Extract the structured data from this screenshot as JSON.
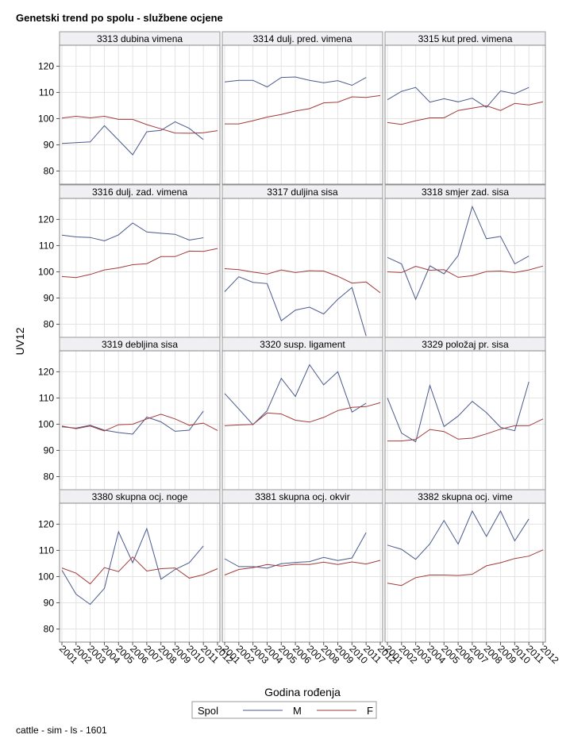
{
  "chart_data": {
    "type": "line",
    "title": "Genetski trend po spolu - službene ocjene",
    "xlabel": "Godina rođenja",
    "ylabel": "UV12",
    "x": [
      2001,
      2002,
      2003,
      2004,
      2005,
      2006,
      2007,
      2008,
      2009,
      2010,
      2011,
      2012
    ],
    "x_tick_labels": [
      "2001",
      "2002",
      "2003",
      "2004",
      "2005",
      "2006",
      "2007",
      "2008",
      "2009",
      "2010",
      "2011",
      "2012"
    ],
    "ylim": [
      75,
      128
    ],
    "y_ticks": [
      80,
      90,
      100,
      110,
      120
    ],
    "grid": true,
    "legend": {
      "title": "Spol",
      "placement": "bottom",
      "entries": [
        {
          "name": "M",
          "color": "#4a5a8c"
        },
        {
          "name": "F",
          "color": "#a33a3a"
        }
      ]
    },
    "panels": [
      {
        "title": "3313 dubina vimena",
        "series": [
          {
            "name": "M",
            "values": [
              90.5,
              90.8,
              91.1,
              97.3,
              91.8,
              86.2,
              95.0,
              95.5,
              98.8,
              96.3,
              92.0,
              null
            ]
          },
          {
            "name": "F",
            "values": [
              100.2,
              100.9,
              100.3,
              100.9,
              99.7,
              99.7,
              97.7,
              96.1,
              94.5,
              94.4,
              94.6,
              95.4
            ]
          }
        ]
      },
      {
        "title": "3314 dulj. pred. vimena",
        "series": [
          {
            "name": "M",
            "values": [
              114.0,
              114.6,
              114.6,
              112.1,
              115.7,
              115.9,
              114.6,
              113.7,
              114.5,
              112.7,
              115.7,
              null
            ]
          },
          {
            "name": "F",
            "values": [
              98.0,
              98.0,
              99.2,
              100.6,
              101.6,
              102.9,
              103.8,
              106.0,
              106.3,
              108.3,
              108.1,
              108.8
            ]
          }
        ]
      },
      {
        "title": "3315 kut pred. vimena",
        "series": [
          {
            "name": "M",
            "values": [
              107.2,
              110.4,
              111.9,
              106.3,
              107.6,
              106.4,
              107.8,
              104.3,
              110.6,
              109.5,
              111.9,
              null
            ]
          },
          {
            "name": "F",
            "values": [
              98.5,
              97.8,
              99.2,
              100.3,
              100.3,
              103.1,
              104.0,
              104.9,
              103.1,
              105.8,
              105.2,
              106.4
            ]
          }
        ]
      },
      {
        "title": "3316 dulj. zad. vimena",
        "series": [
          {
            "name": "M",
            "values": [
              114.0,
              113.3,
              113.1,
              111.8,
              114.1,
              118.6,
              115.2,
              114.7,
              114.3,
              112.1,
              113.0,
              null
            ]
          },
          {
            "name": "F",
            "values": [
              98.2,
              97.8,
              99.0,
              100.7,
              101.5,
              102.7,
              103.1,
              105.8,
              105.8,
              107.9,
              107.8,
              108.9
            ]
          }
        ]
      },
      {
        "title": "3317 duljina sisa",
        "series": [
          {
            "name": "M",
            "values": [
              92.4,
              98.1,
              96.0,
              95.5,
              81.3,
              85.4,
              86.5,
              83.9,
              89.5,
              94.0,
              75.5,
              null
            ]
          },
          {
            "name": "F",
            "values": [
              101.2,
              100.8,
              99.9,
              99.1,
              100.7,
              99.7,
              100.4,
              100.3,
              98.3,
              95.7,
              96.1,
              92.0
            ]
          }
        ]
      },
      {
        "title": "3318 smjer zad. sisa",
        "series": [
          {
            "name": "M",
            "values": [
              105.5,
              103.0,
              89.5,
              102.3,
              99.2,
              106.2,
              124.9,
              112.6,
              113.5,
              103.0,
              106.0,
              null
            ]
          },
          {
            "name": "F",
            "values": [
              100.0,
              99.7,
              102.1,
              100.6,
              100.8,
              97.9,
              98.5,
              100.1,
              100.3,
              99.7,
              100.7,
              102.2
            ]
          }
        ]
      },
      {
        "title": "3319 debljina sisa",
        "series": [
          {
            "name": "M",
            "values": [
              99.0,
              98.5,
              99.6,
              97.7,
              96.8,
              96.2,
              102.7,
              100.9,
              97.3,
              97.7,
              105.0,
              null
            ]
          },
          {
            "name": "F",
            "values": [
              99.3,
              98.3,
              99.3,
              97.4,
              99.8,
              100.0,
              102.0,
              103.8,
              102.0,
              99.6,
              100.4,
              97.6
            ]
          }
        ]
      },
      {
        "title": "3320 susp. ligament",
        "series": [
          {
            "name": "M",
            "values": [
              111.7,
              105.8,
              99.8,
              105.2,
              117.5,
              110.6,
              122.7,
              115.0,
              120.0,
              104.6,
              108.0,
              null
            ]
          },
          {
            "name": "F",
            "values": [
              99.4,
              99.7,
              99.9,
              104.3,
              103.9,
              101.5,
              100.8,
              102.6,
              105.2,
              106.4,
              106.7,
              108.2
            ]
          }
        ]
      },
      {
        "title": "3329 položaj pr. sisa",
        "series": [
          {
            "name": "M",
            "values": [
              110.0,
              96.6,
              93.3,
              114.8,
              99.1,
              103.1,
              108.7,
              104.4,
              98.8,
              97.5,
              116.2,
              null
            ]
          },
          {
            "name": "F",
            "values": [
              93.6,
              93.6,
              94.2,
              98.0,
              97.2,
              94.3,
              94.7,
              96.3,
              98.1,
              99.4,
              99.4,
              102.0
            ]
          }
        ]
      },
      {
        "title": "3380 skupna ocj. noge",
        "series": [
          {
            "name": "M",
            "values": [
              102.4,
              93.3,
              89.4,
              95.5,
              117.1,
              105.3,
              118.3,
              99.0,
              102.7,
              105.3,
              111.7,
              null
            ]
          },
          {
            "name": "F",
            "values": [
              103.3,
              101.3,
              97.2,
              103.4,
              101.9,
              107.5,
              102.1,
              103.0,
              103.3,
              99.4,
              100.7,
              103.0
            ]
          }
        ]
      },
      {
        "title": "3381 skupna ocj. okvir",
        "series": [
          {
            "name": "M",
            "values": [
              106.8,
              103.8,
              103.8,
              103.2,
              104.9,
              105.4,
              105.7,
              107.3,
              106.1,
              107.1,
              116.8,
              null
            ]
          },
          {
            "name": "F",
            "values": [
              100.6,
              102.7,
              103.4,
              104.6,
              104.0,
              104.7,
              104.6,
              105.5,
              104.6,
              105.6,
              104.8,
              106.2
            ]
          }
        ]
      },
      {
        "title": "3382 skupna ocj. vime",
        "series": [
          {
            "name": "M",
            "values": [
              112.0,
              110.4,
              106.6,
              112.5,
              121.4,
              112.4,
              125.0,
              115.3,
              125.0,
              113.6,
              122.0,
              null
            ]
          },
          {
            "name": "F",
            "values": [
              97.5,
              96.6,
              99.6,
              100.6,
              100.6,
              100.4,
              100.9,
              104.1,
              105.3,
              106.9,
              107.8,
              110.2
            ]
          }
        ]
      }
    ]
  },
  "footer": "cattle - sim - ls - 1601"
}
